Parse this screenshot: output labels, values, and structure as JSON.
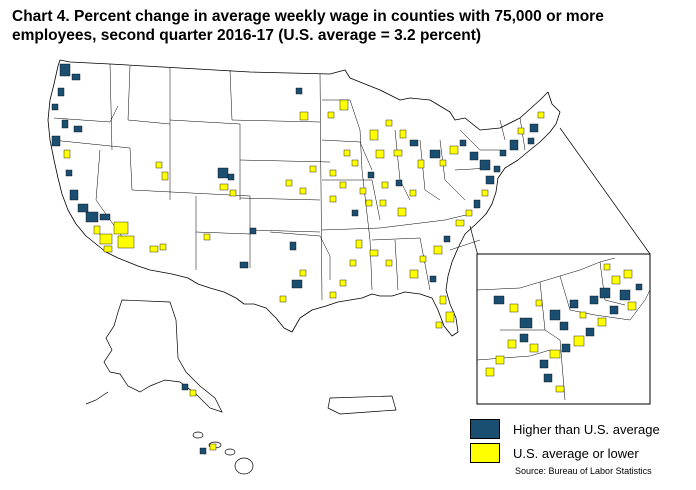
{
  "title": {
    "line1": "Chart 4. Percent change in average weekly wage in counties with 75,000 or more",
    "line2": "employees, second quarter 2016-17 (U.S. average = 3.2 percent)"
  },
  "legend": {
    "items": [
      {
        "label": "Higher than U.S. average",
        "color": "#1b4f72"
      },
      {
        "label": "U.S. average or lower",
        "color": "#ffff00"
      }
    ]
  },
  "source": "Source: Bureau of Labor Statistics",
  "colors": {
    "above_average": "#1b4f72",
    "at_or_below_average": "#ffff00",
    "boundary": "#000000",
    "land": "#ffffff"
  },
  "map": {
    "regions": [
      "contiguous-us",
      "alaska",
      "hawaii",
      "puerto-rico"
    ],
    "inset": "northeast-enlarged"
  }
}
